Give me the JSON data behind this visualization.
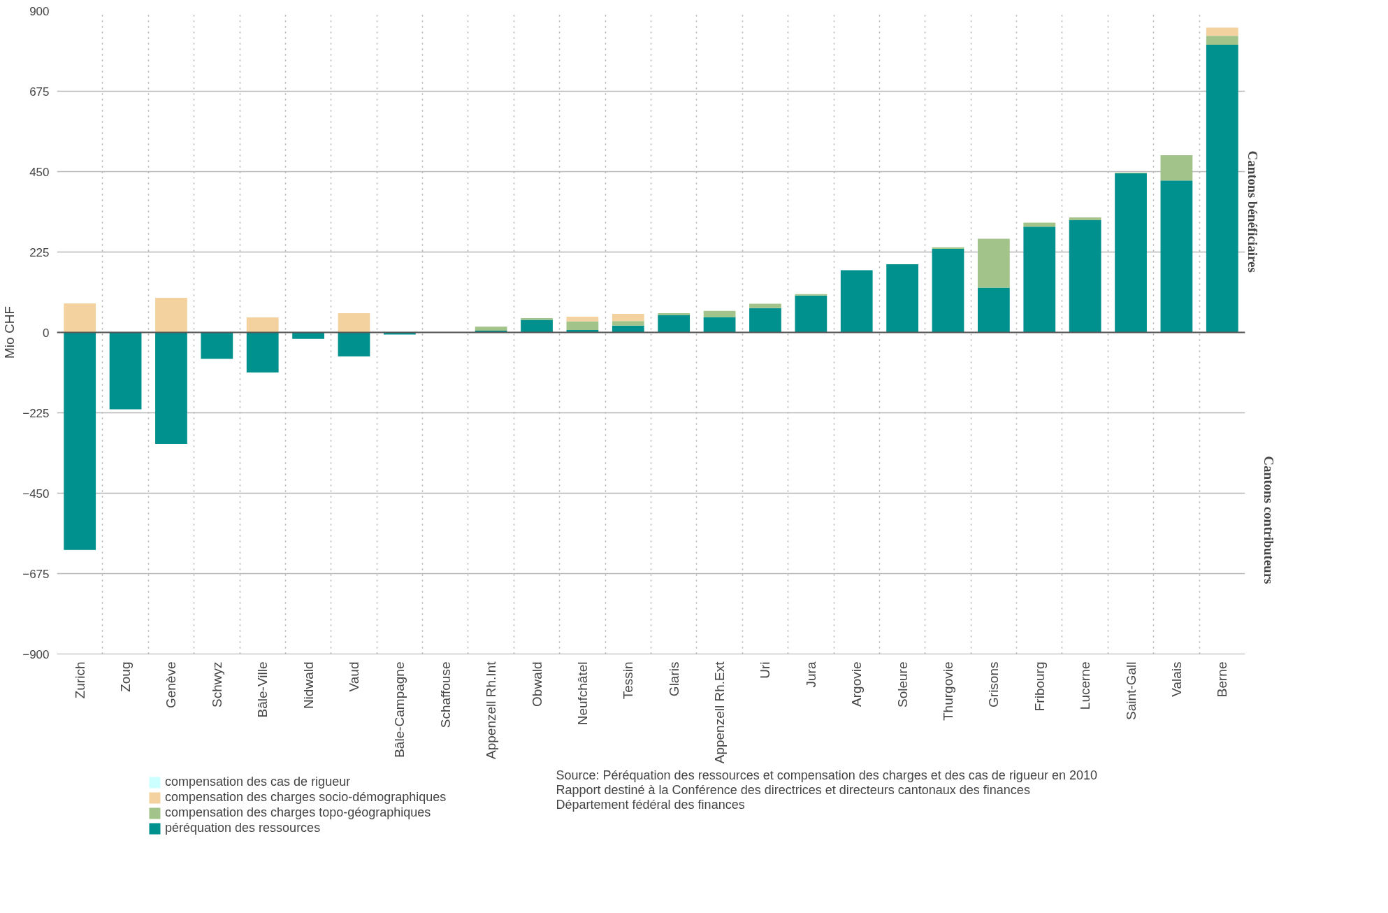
{
  "chart_data": {
    "type": "bar",
    "stacked": true,
    "ylabel": "Mio CHF",
    "categories": [
      "Zurich",
      "Zoug",
      "Genève",
      "Schwyz",
      "Bâle-Ville",
      "Nidwald",
      "Vaud",
      "Bâle-Campagne",
      "Schaffouse",
      "Appenzell Rh.Int",
      "Obwald",
      "Neufchâtel",
      "Tessin",
      "Glaris",
      "Appenzell Rh.Ext",
      "Uri",
      "Jura",
      "Argovie",
      "Soleure",
      "Thurgovie",
      "Grisons",
      "Fribourg",
      "Lucerne",
      "Saint-Gall",
      "Valais",
      "Berne"
    ],
    "series": [
      {
        "name": "péréquation des ressources",
        "color": "#00918f",
        "values": [
          -609,
          -215,
          -312,
          -74,
          -112,
          -18,
          -67,
          -6,
          -1,
          5,
          35,
          7,
          19,
          49,
          43,
          68,
          103,
          174,
          191,
          234,
          125,
          296,
          314,
          445,
          425,
          805
        ]
      },
      {
        "name": "compensation des charges topo-géographiques",
        "color": "#a2c48a",
        "values": [
          0,
          0,
          0,
          null,
          0,
          0,
          0,
          0,
          0,
          11,
          5,
          24,
          13,
          5,
          17,
          12,
          4,
          0,
          0,
          4,
          137,
          11,
          8,
          2,
          71,
          25
        ]
      },
      {
        "name": "compensation des charges socio-démographiques",
        "color": "#f4d29f",
        "values": [
          81,
          0,
          97,
          0,
          42,
          0,
          54,
          0,
          0,
          0,
          0,
          13,
          20,
          0,
          0,
          0,
          0,
          0,
          0,
          0,
          0,
          0,
          0,
          0,
          0,
          23
        ]
      },
      {
        "name": "compensation des cas de rigueur",
        "color": "#ccffff",
        "values": [
          0,
          0,
          0,
          0,
          0,
          0,
          0,
          0,
          0,
          0,
          0,
          0,
          0,
          0,
          0,
          0,
          0,
          0,
          0,
          0,
          0,
          0,
          0,
          0,
          0,
          0
        ]
      }
    ],
    "ylim": [
      -900,
      900
    ],
    "yticks": [
      -900,
      -675,
      -450,
      -225,
      0,
      225,
      450,
      675,
      900
    ],
    "grid": true,
    "legend": "bottom left",
    "ref_lines": [
      {
        "axis": "y",
        "value": 0,
        "color": "#555555"
      }
    ],
    "annotations": [
      "Cantons bénéficiaires",
      "Cantons contributeurs",
      "Source: Péréquation des ressources et compensation des charges et des cas de rigueur en 2010",
      "Rapport destiné à la Conférence des directrices et directeurs cantonaux des finances",
      "Département fédéral des finances"
    ]
  }
}
